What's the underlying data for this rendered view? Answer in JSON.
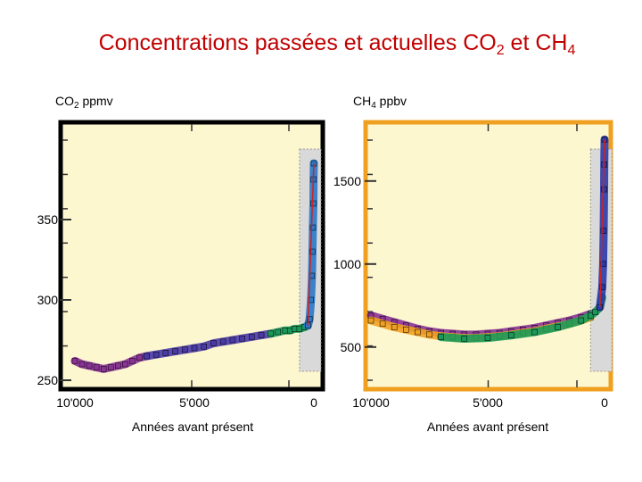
{
  "title": {
    "main": "Concentrations passées et actuelles CO",
    "sub1": "2",
    "mid": " et CH",
    "sub2": "4"
  },
  "chart_data": [
    {
      "type": "scatter",
      "ylabel": {
        "main": "CO",
        "sub": "2",
        "unit": " ppmv"
      },
      "xlabel": "Années avant présent",
      "x_tick_labels": [
        "10'000",
        "5'000",
        "0"
      ],
      "y_tick_labels": [
        "250",
        "300",
        "350"
      ],
      "xlim": [
        10000,
        0
      ],
      "ylim": [
        250,
        405
      ],
      "frame_color": "#000000",
      "highlight_band": {
        "x": [
          600,
          0
        ]
      },
      "series": [
        {
          "color": "#8a3296",
          "points": [
            [
              10000,
              262
            ],
            [
              9700,
              260
            ],
            [
              9400,
              259
            ],
            [
              9100,
              258
            ],
            [
              8800,
              257
            ],
            [
              8500,
              258
            ],
            [
              8200,
              259
            ],
            [
              7900,
              260
            ],
            [
              7600,
              262
            ],
            [
              7300,
              264
            ],
            [
              7000,
              265
            ]
          ]
        },
        {
          "color": "#4a3aa8",
          "points": [
            [
              7000,
              265
            ],
            [
              6600,
              266
            ],
            [
              6200,
              267
            ],
            [
              5800,
              268
            ],
            [
              5400,
              269
            ],
            [
              5000,
              270
            ],
            [
              4600,
              271
            ],
            [
              4200,
              273
            ],
            [
              3800,
              274
            ],
            [
              3400,
              275
            ],
            [
              3000,
              276
            ],
            [
              2600,
              277
            ],
            [
              2200,
              278
            ],
            [
              1800,
              279
            ]
          ]
        },
        {
          "color": "#1a9a5a",
          "points": [
            [
              1800,
              279
            ],
            [
              1500,
              280
            ],
            [
              1200,
              281
            ],
            [
              1000,
              281
            ],
            [
              800,
              282
            ],
            [
              600,
              282
            ],
            [
              400,
              283
            ],
            [
              250,
              284
            ]
          ]
        },
        {
          "color": "#2a78c8",
          "points": [
            [
              250,
              284
            ],
            [
              180,
              288
            ],
            [
              120,
              300
            ],
            [
              80,
              315
            ],
            [
              60,
              330
            ],
            [
              40,
              345
            ],
            [
              20,
              360
            ],
            [
              10,
              375
            ],
            [
              0,
              385
            ]
          ]
        }
      ]
    },
    {
      "type": "scatter",
      "ylabel": {
        "main": "CH",
        "sub": "4",
        "unit": " ppbv"
      },
      "xlabel": "Années avant présent",
      "x_tick_labels": [
        "10'000",
        "5'000",
        "0"
      ],
      "y_tick_labels": [
        "500",
        "1000",
        "1500"
      ],
      "xlim": [
        10000,
        0
      ],
      "ylim": [
        300,
        1800
      ],
      "frame_color": "#f0a020",
      "highlight_band": {
        "x": [
          600,
          0
        ]
      },
      "series": [
        {
          "color": "#8a3296",
          "points": [
            [
              10000,
              690
            ],
            [
              9500,
              670
            ],
            [
              9000,
              650
            ],
            [
              8500,
              630
            ],
            [
              8000,
              610
            ],
            [
              7500,
              595
            ],
            [
              7000,
              585
            ],
            [
              6500,
              580
            ],
            [
              6000,
              575
            ],
            [
              5500,
              575
            ],
            [
              5000,
              580
            ],
            [
              4500,
              585
            ],
            [
              4000,
              595
            ],
            [
              3500,
              605
            ],
            [
              3000,
              615
            ],
            [
              2500,
              630
            ],
            [
              2000,
              645
            ],
            [
              1500,
              660
            ],
            [
              1000,
              680
            ],
            [
              600,
              700
            ]
          ]
        },
        {
          "color": "#f0a020",
          "points": [
            [
              10000,
              660
            ],
            [
              9500,
              640
            ],
            [
              9000,
              620
            ],
            [
              8500,
              605
            ],
            [
              8000,
              590
            ],
            [
              7500,
              575
            ],
            [
              7000,
              565
            ],
            [
              6500,
              560
            ],
            [
              6000,
              555
            ],
            [
              5500,
              555
            ],
            [
              5000,
              560
            ],
            [
              4500,
              565
            ],
            [
              4000,
              575
            ],
            [
              3500,
              585
            ],
            [
              3000,
              595
            ],
            [
              2500,
              610
            ],
            [
              2000,
              625
            ],
            [
              1500,
              640
            ],
            [
              1000,
              660
            ],
            [
              600,
              680
            ]
          ]
        },
        {
          "color": "#1a9a5a",
          "points": [
            [
              7000,
              560
            ],
            [
              6000,
              550
            ],
            [
              5000,
              555
            ],
            [
              4000,
              570
            ],
            [
              3000,
              590
            ],
            [
              2000,
              620
            ],
            [
              1000,
              660
            ],
            [
              600,
              690
            ],
            [
              400,
              710
            ],
            [
              200,
              740
            ],
            [
              100,
              800
            ]
          ]
        },
        {
          "color": "#2a3aa8",
          "points": [
            [
              200,
              740
            ],
            [
              100,
              860
            ],
            [
              60,
              1000
            ],
            [
              40,
              1200
            ],
            [
              20,
              1450
            ],
            [
              10,
              1600
            ],
            [
              0,
              1750
            ]
          ]
        }
      ]
    }
  ]
}
